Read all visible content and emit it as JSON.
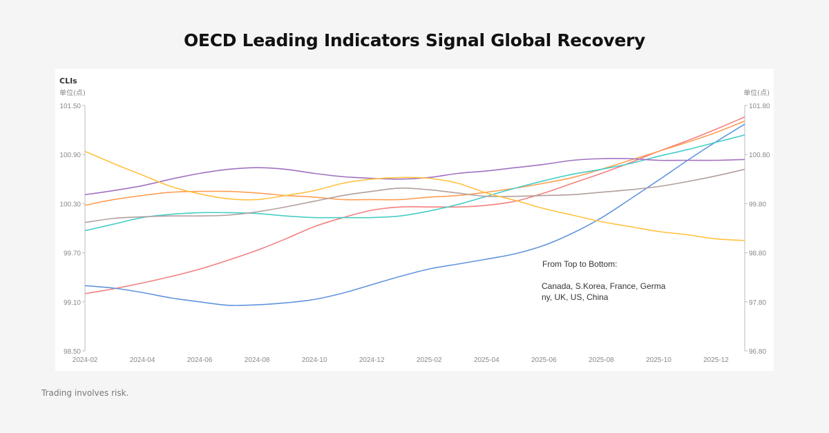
{
  "title": "OECD Leading Indicators Signal Global Recovery",
  "footer": "Trading involves risk.",
  "chart_data": {
    "type": "line",
    "title": "CLIs",
    "left_axis": {
      "unit": "单位(点)",
      "ylim": [
        98.5,
        101.5
      ],
      "ticks": [
        "101.50",
        "100.90",
        "100.30",
        "99.70",
        "99.10",
        "98.50"
      ]
    },
    "right_axis": {
      "unit": "单位(点)",
      "ylim": [
        96.8,
        101.8
      ],
      "ticks": [
        "101.80",
        "100.80",
        "99.80",
        "98.80",
        "97.80",
        "96.80"
      ]
    },
    "x": [
      "2024-02",
      "2024-03",
      "2024-04",
      "2024-05",
      "2024-06",
      "2024-07",
      "2024-08",
      "2024-09",
      "2024-10",
      "2024-11",
      "2024-12",
      "2025-01",
      "2025-02",
      "2025-03",
      "2025-04",
      "2025-05",
      "2025-06",
      "2025-07",
      "2025-08",
      "2025-09",
      "2025-10",
      "2025-11",
      "2025-12",
      "2026-01"
    ],
    "x_tick_labels": [
      "2024-02",
      "2024-04",
      "2024-06",
      "2024-08",
      "2024-10",
      "2024-12",
      "2025-02",
      "2025-04",
      "2025-06",
      "2025-08",
      "2025-10",
      "2025-12"
    ],
    "grid": false,
    "annotation": {
      "heading": "From Top to Bottom:",
      "line1": "Canada, S.Korea, France, Germa",
      "line2": "ny, UK, US, China"
    },
    "series": [
      {
        "color": "#f47f7f",
        "axis": "left",
        "values": [
          99.2,
          99.26,
          99.33,
          99.41,
          99.5,
          99.61,
          99.73,
          99.87,
          100.02,
          100.13,
          100.22,
          100.26,
          100.26,
          100.26,
          100.28,
          100.33,
          100.43,
          100.55,
          100.67,
          100.8,
          100.94,
          101.07,
          101.21,
          101.36
        ]
      },
      {
        "color": "#ff9d52",
        "axis": "left",
        "values": [
          100.28,
          100.35,
          100.4,
          100.44,
          100.45,
          100.45,
          100.43,
          100.4,
          100.38,
          100.35,
          100.35,
          100.35,
          100.38,
          100.4,
          100.44,
          100.49,
          100.55,
          100.62,
          100.72,
          100.83,
          100.94,
          101.05,
          101.17,
          101.31
        ]
      },
      {
        "color": "#5f95dd",
        "axis": "right",
        "values": [
          98.13,
          98.08,
          97.99,
          97.88,
          97.8,
          97.73,
          97.74,
          97.78,
          97.85,
          97.98,
          98.15,
          98.32,
          98.47,
          98.57,
          98.67,
          98.78,
          98.95,
          99.2,
          99.51,
          99.89,
          100.28,
          100.68,
          101.06,
          101.42
        ]
      },
      {
        "color": "#45cdc6",
        "axis": "left",
        "values": [
          99.97,
          100.05,
          100.13,
          100.17,
          100.19,
          100.19,
          100.18,
          100.15,
          100.13,
          100.13,
          100.13,
          100.15,
          100.21,
          100.29,
          100.39,
          100.49,
          100.58,
          100.66,
          100.72,
          100.79,
          100.88,
          100.96,
          101.05,
          101.14
        ]
      },
      {
        "color": "#a070c0",
        "axis": "left",
        "values": [
          100.41,
          100.46,
          100.52,
          100.6,
          100.67,
          100.72,
          100.74,
          100.72,
          100.67,
          100.63,
          100.61,
          100.6,
          100.62,
          100.67,
          100.7,
          100.74,
          100.78,
          100.83,
          100.85,
          100.85,
          100.83,
          100.83,
          100.83,
          100.84
        ]
      },
      {
        "color": "#b29e9c",
        "axis": "left",
        "values": [
          100.07,
          100.12,
          100.14,
          100.15,
          100.15,
          100.16,
          100.2,
          100.26,
          100.33,
          100.4,
          100.45,
          100.49,
          100.47,
          100.43,
          100.39,
          100.39,
          100.4,
          100.41,
          100.44,
          100.47,
          100.51,
          100.57,
          100.64,
          100.72
        ]
      },
      {
        "color": "#ffc13f",
        "axis": "left",
        "values": [
          100.94,
          100.79,
          100.65,
          100.51,
          100.42,
          100.36,
          100.35,
          100.4,
          100.46,
          100.55,
          100.6,
          100.62,
          100.61,
          100.55,
          100.43,
          100.34,
          100.24,
          100.16,
          100.08,
          100.02,
          99.96,
          99.92,
          99.87,
          99.85
        ]
      }
    ]
  }
}
